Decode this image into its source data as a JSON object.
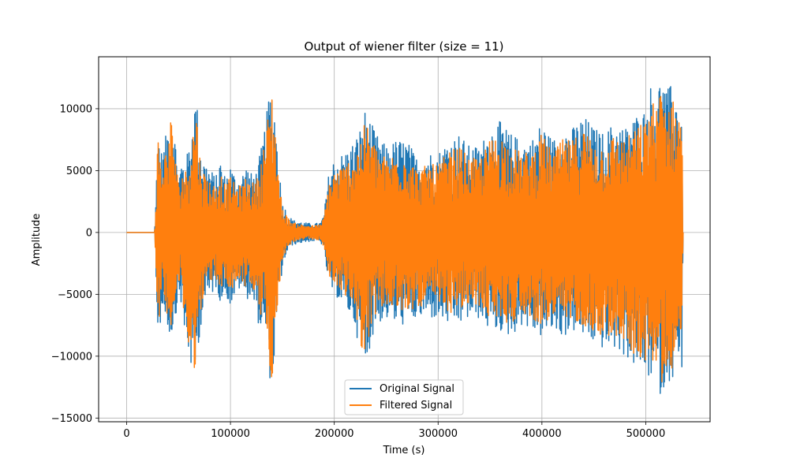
{
  "chart_data": {
    "type": "line",
    "title": "Output of wiener filter (size = 11)",
    "xlabel": "Time (s)",
    "ylabel": "Amplitude",
    "xlim": [
      -27000,
      562000
    ],
    "ylim": [
      -15300,
      14200
    ],
    "xticks": [
      0,
      100000,
      200000,
      300000,
      400000,
      500000
    ],
    "xtick_labels": [
      "0",
      "100000",
      "200000",
      "300000",
      "400000",
      "500000"
    ],
    "yticks": [
      -15000,
      -10000,
      -5000,
      0,
      5000,
      10000
    ],
    "ytick_labels": [
      "−15000",
      "−10000",
      "−5000",
      "0",
      "5000",
      "10000"
    ],
    "grid": true,
    "legend_position": "lower-center",
    "series": [
      {
        "name": "Original Signal",
        "color": "#1f77b4",
        "envelope": {
          "x": [
            0,
            27000,
            28000,
            30000,
            33000,
            36000,
            40000,
            43000,
            46000,
            50000,
            53000,
            56000,
            60000,
            64000,
            67000,
            70000,
            74000,
            78000,
            82000,
            86000,
            90000,
            95000,
            100000,
            105000,
            110000,
            115000,
            120000,
            125000,
            130000,
            134000,
            137000,
            140000,
            143000,
            146000,
            150000,
            155000,
            160000,
            170000,
            180000,
            187000,
            190000,
            195000,
            200000,
            210000,
            220000,
            225000,
            230000,
            235000,
            240000,
            250000,
            260000,
            270000,
            280000,
            290000,
            300000,
            310000,
            320000,
            330000,
            340000,
            350000,
            360000,
            370000,
            380000,
            390000,
            400000,
            410000,
            420000,
            430000,
            440000,
            450000,
            460000,
            470000,
            480000,
            490000,
            500000,
            505000,
            510000,
            515000,
            520000,
            525000,
            530000,
            535000,
            536000
          ],
          "upper": [
            0,
            0,
            2500,
            8800,
            6500,
            7000,
            9000,
            10500,
            8500,
            4500,
            6000,
            5500,
            7000,
            9500,
            11500,
            7500,
            6000,
            5500,
            5000,
            4500,
            6000,
            4500,
            5500,
            4500,
            4500,
            5500,
            4800,
            5000,
            7000,
            9000,
            11000,
            12000,
            10000,
            6000,
            2500,
            1500,
            1000,
            800,
            700,
            800,
            1500,
            5000,
            6000,
            6500,
            7500,
            8500,
            10000,
            9000,
            8000,
            7000,
            7500,
            7500,
            6000,
            6500,
            6500,
            7500,
            8000,
            7000,
            7000,
            8500,
            9000,
            8000,
            7500,
            7500,
            9000,
            7500,
            8500,
            8500,
            9500,
            8500,
            8000,
            9000,
            8500,
            9500,
            10000,
            12000,
            11000,
            13000,
            11500,
            12000,
            11000,
            10000,
            0
          ],
          "lower": [
            0,
            0,
            -2500,
            -9000,
            -7000,
            -6500,
            -8000,
            -8500,
            -7500,
            -5000,
            -6000,
            -9000,
            -10000,
            -12000,
            -11500,
            -8500,
            -6000,
            -5500,
            -5000,
            -4500,
            -5500,
            -5000,
            -6000,
            -5000,
            -4500,
            -5500,
            -5000,
            -7000,
            -8000,
            -8500,
            -11500,
            -12500,
            -9500,
            -6000,
            -3000,
            -1500,
            -1000,
            -800,
            -700,
            -800,
            -1500,
            -4500,
            -5000,
            -6000,
            -7500,
            -10000,
            -11000,
            -9000,
            -7500,
            -7000,
            -7500,
            -7500,
            -7000,
            -7000,
            -7000,
            -7500,
            -7500,
            -7000,
            -7000,
            -8000,
            -8000,
            -8500,
            -7500,
            -8000,
            -8500,
            -8000,
            -8500,
            -8000,
            -8500,
            -9000,
            -9500,
            -9500,
            -10000,
            -11000,
            -11500,
            -12000,
            -11500,
            -13500,
            -12000,
            -12000,
            -11500,
            -11000,
            0
          ]
        }
      },
      {
        "name": "Filtered Signal",
        "color": "#ff7f0e",
        "envelope": {
          "x": [
            0,
            27000,
            28000,
            30000,
            33000,
            36000,
            40000,
            43000,
            46000,
            50000,
            53000,
            56000,
            60000,
            64000,
            67000,
            70000,
            74000,
            78000,
            82000,
            86000,
            90000,
            95000,
            100000,
            105000,
            110000,
            115000,
            120000,
            125000,
            130000,
            134000,
            137000,
            140000,
            143000,
            146000,
            150000,
            155000,
            160000,
            170000,
            180000,
            187000,
            190000,
            195000,
            200000,
            210000,
            220000,
            225000,
            230000,
            235000,
            240000,
            250000,
            260000,
            270000,
            280000,
            290000,
            300000,
            310000,
            320000,
            330000,
            340000,
            350000,
            360000,
            370000,
            380000,
            390000,
            400000,
            410000,
            420000,
            430000,
            440000,
            450000,
            460000,
            470000,
            480000,
            490000,
            500000,
            505000,
            510000,
            515000,
            520000,
            525000,
            530000,
            535000,
            536000
          ],
          "upper": [
            0,
            0,
            2000,
            8000,
            5500,
            6000,
            8000,
            9500,
            7500,
            3800,
            5000,
            4800,
            6000,
            8500,
            10500,
            6500,
            5000,
            4500,
            4000,
            3800,
            5000,
            3800,
            4500,
            3800,
            3800,
            4500,
            4000,
            4200,
            6000,
            8000,
            10000,
            11500,
            9000,
            5000,
            2000,
            1200,
            800,
            600,
            550,
            650,
            1200,
            4200,
            5000,
            5500,
            6500,
            7500,
            9000,
            8000,
            7000,
            6000,
            6500,
            6500,
            5000,
            5500,
            5500,
            6500,
            7000,
            6000,
            6000,
            7500,
            8000,
            7000,
            6500,
            6500,
            8000,
            6500,
            7500,
            7500,
            8500,
            7500,
            7000,
            8000,
            7500,
            8500,
            9000,
            11000,
            10000,
            12000,
            10500,
            11000,
            10000,
            9500,
            0
          ],
          "lower": [
            0,
            0,
            -2000,
            -8000,
            -6000,
            -5500,
            -7000,
            -7500,
            -6500,
            -4200,
            -5000,
            -8000,
            -9000,
            -11500,
            -10500,
            -7500,
            -5000,
            -4500,
            -4000,
            -3800,
            -4500,
            -4200,
            -5000,
            -4200,
            -3800,
            -4500,
            -4200,
            -6000,
            -7000,
            -7500,
            -10500,
            -12000,
            -8500,
            -5000,
            -2500,
            -1200,
            -800,
            -600,
            -550,
            -650,
            -1200,
            -3800,
            -4200,
            -5000,
            -6500,
            -9000,
            -10000,
            -8000,
            -6500,
            -6000,
            -6500,
            -6500,
            -6000,
            -6000,
            -6000,
            -6500,
            -6500,
            -6000,
            -6000,
            -7000,
            -7000,
            -7500,
            -6500,
            -7000,
            -7500,
            -7000,
            -7500,
            -7000,
            -7500,
            -8000,
            -8500,
            -8500,
            -9000,
            -10000,
            -10500,
            -11000,
            -10500,
            -12500,
            -11000,
            -11000,
            -10500,
            -10000,
            0
          ]
        }
      }
    ]
  }
}
